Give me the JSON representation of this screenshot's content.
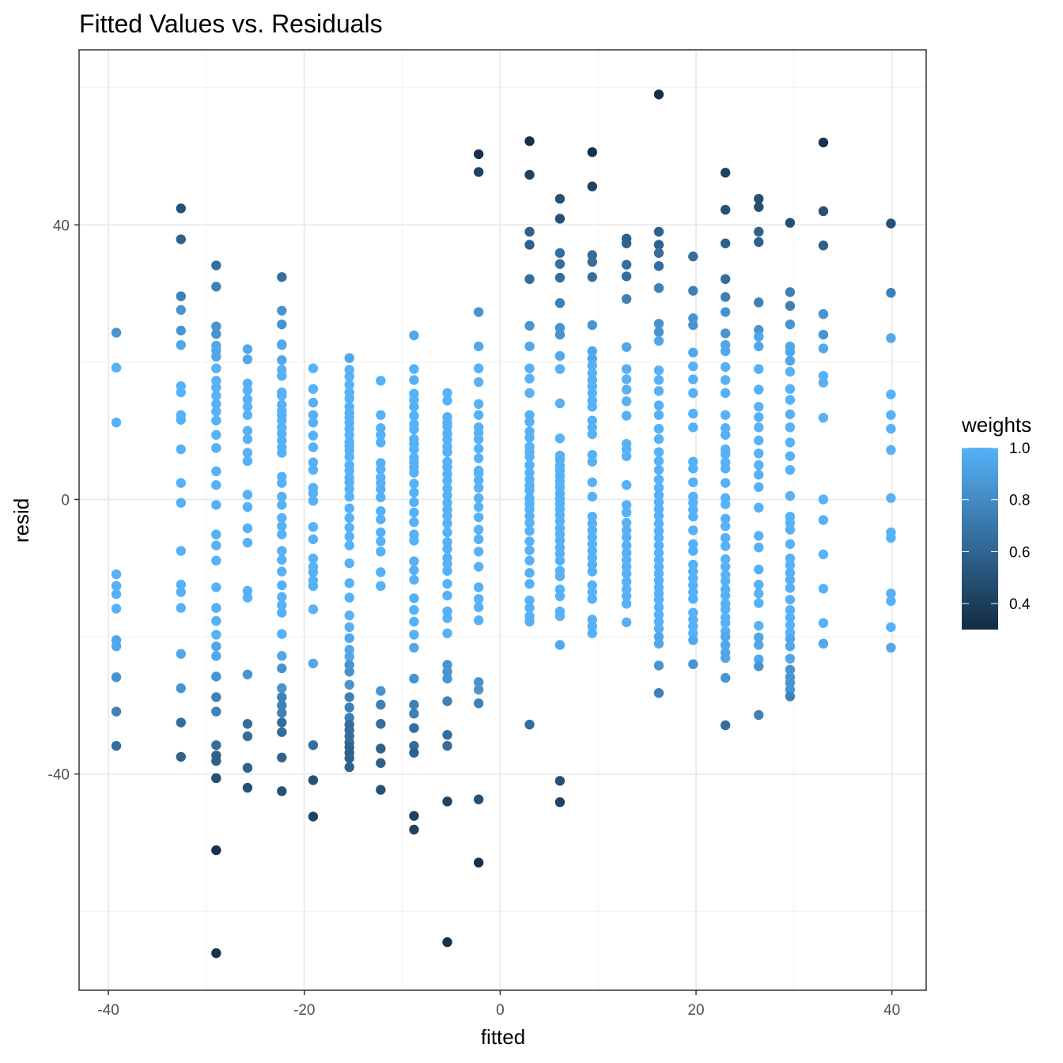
{
  "chart_data": {
    "type": "scatter",
    "title": "Fitted Values vs. Residuals",
    "xlabel": "fitted",
    "ylabel": "resid",
    "xlim": [
      -43,
      43.5
    ],
    "ylim": [
      -71.5,
      65.5
    ],
    "x_ticks": [
      -40,
      -20,
      0,
      20,
      40
    ],
    "x_tick_labels": [
      "-40",
      "-20",
      "0",
      "20",
      "40"
    ],
    "y_ticks": [
      -40,
      0,
      40
    ],
    "y_tick_labels": [
      "-40",
      "0",
      "40"
    ],
    "grid": true,
    "legend": {
      "title": "weights",
      "position": "right",
      "type": "colorbar",
      "range": [
        0.3,
        1.0
      ],
      "ticks": [
        0.4,
        0.6,
        0.8,
        1.0
      ],
      "tick_labels": [
        "0.4",
        "0.6",
        "0.8",
        "1.0"
      ],
      "low_color": "#132B43",
      "high_color": "#56B1F7"
    },
    "columns": [
      {
        "x": -39.2,
        "resid": [
          24.3,
          19.2,
          11.2,
          -10.9,
          -12.6,
          -13.8,
          -15.9,
          -20.5,
          -21.4,
          -25.9,
          -30.9,
          -35.9
        ]
      },
      {
        "x": -32.6,
        "resid": [
          42.4,
          37.9,
          29.6,
          27.6,
          24.6,
          22.5,
          16.5,
          15.6,
          12.3,
          11.6,
          7.3,
          2.4,
          -0.5,
          -7.5,
          -12.4,
          -13.5,
          -15.8,
          -22.5,
          -27.5,
          -32.5,
          -37.5
        ]
      },
      {
        "x": -29.0,
        "resid": [
          34.1,
          31.0,
          25.2,
          24.1,
          22.4,
          21.7,
          20.8,
          19.1,
          17.3,
          16.3,
          15.1,
          13.9,
          12.8,
          11.5,
          9.4,
          7.5,
          4.1,
          2.1,
          -0.8,
          -5.1,
          -6.7,
          -8.9,
          -12.8,
          -15.8,
          -17.7,
          -19.7,
          -21.4,
          -22.8,
          -25.8,
          -28.8,
          -30.9,
          -35.8,
          -37.3,
          -38.1,
          -40.6,
          -40.6,
          -51.1,
          -66.1
        ]
      },
      {
        "x": -25.8,
        "resid": [
          21.9,
          20.4,
          16.9,
          15.9,
          14.6,
          13.5,
          12.3,
          10.0,
          8.8,
          6.8,
          5.6,
          0.7,
          -1.1,
          -4.2,
          -6.3,
          -13.3,
          -14.3,
          -25.5,
          -32.7,
          -34.5,
          -39.1,
          -42.0
        ]
      },
      {
        "x": -22.3,
        "resid": [
          32.4,
          27.5,
          25.5,
          22.6,
          22.5,
          20.3,
          18.9,
          18.0,
          15.6,
          15.1,
          13.8,
          12.9,
          12.3,
          11.5,
          10.5,
          9.6,
          8.6,
          7.6,
          6.8,
          3.3,
          2.4,
          0.4,
          -0.8,
          -2.7,
          -3.9,
          -5.1,
          -7.5,
          -8.8,
          -10.5,
          -12.5,
          -14.2,
          -15.4,
          -16.5,
          -19.6,
          -22.8,
          -24.6,
          -27.5,
          -28.8,
          -30.0,
          -31.1,
          -32.5,
          -33.9,
          -37.6,
          -42.5
        ]
      },
      {
        "x": -19.1,
        "resid": [
          19.1,
          16.1,
          14.1,
          12.3,
          11.2,
          9.3,
          7.6,
          5.4,
          4.3,
          1.7,
          0.9,
          -0.2,
          -4.0,
          -5.8,
          -8.6,
          -9.8,
          -10.6,
          -11.8,
          -12.6,
          -16.0,
          -23.9,
          -35.8,
          -40.9,
          -46.2
        ]
      },
      {
        "x": -15.4,
        "resid": [
          20.6,
          18.9,
          17.9,
          16.7,
          15.6,
          14.7,
          13.5,
          12.6,
          11.9,
          11.2,
          10.3,
          9.4,
          8.4,
          7.8,
          7.1,
          6.2,
          5.0,
          4.2,
          3.2,
          2.5,
          1.5,
          0.4,
          -1.3,
          -2.7,
          -4.1,
          -5.4,
          -6.7,
          -9.3,
          -12.2,
          -14.3,
          -16.9,
          -18.6,
          -20.2,
          -21.9,
          -22.9,
          -24.1,
          -25.1,
          -27.0,
          -28.8,
          -30.3,
          -31.8,
          -32.8,
          -33.6,
          -34.5,
          -35.4,
          -36.1,
          -36.9,
          -37.7,
          -39.0
        ]
      },
      {
        "x": -12.2,
        "resid": [
          17.3,
          12.3,
          10.4,
          9.4,
          8.3,
          5.3,
          4.4,
          3.2,
          2.4,
          1.5,
          0.3,
          -1.7,
          -2.9,
          -4.8,
          -6.1,
          -7.6,
          -10.6,
          -12.6,
          -27.9,
          -29.9,
          -32.7,
          -36.3,
          -38.4,
          -42.3
        ]
      },
      {
        "x": -8.8,
        "resid": [
          23.9,
          19.0,
          17.4,
          15.4,
          14.5,
          13.5,
          12.2,
          11.0,
          10.2,
          8.8,
          8.1,
          7.3,
          6.1,
          5.4,
          4.7,
          3.9,
          2.3,
          1.0,
          -0.4,
          -1.9,
          -3.3,
          -5.1,
          -6.0,
          -9.0,
          -10.3,
          -11.7,
          -14.4,
          -16.1,
          -17.8,
          -19.7,
          -21.6,
          -26.1,
          -29.9,
          -31.2,
          -33.3,
          -35.9,
          -36.9,
          -46.1,
          -48.1
        ]
      },
      {
        "x": -5.4,
        "resid": [
          15.5,
          14.4,
          12.0,
          11.2,
          10.6,
          9.6,
          8.7,
          7.7,
          6.9,
          5.5,
          4.7,
          3.7,
          2.7,
          1.6,
          0.6,
          -0.5,
          -1.5,
          -2.4,
          -3.5,
          -4.8,
          -6.2,
          -7.2,
          -8.5,
          -9.4,
          -10.4,
          -12.3,
          -14.0,
          -16.3,
          -17.3,
          -19.5,
          -24.1,
          -25.1,
          -26.1,
          -29.4,
          -34.3,
          -35.9,
          -44.0,
          -64.5
        ]
      },
      {
        "x": -2.2,
        "resid": [
          50.3,
          47.7,
          27.3,
          22.3,
          19.1,
          17.1,
          13.9,
          12.3,
          10.5,
          9.7,
          8.8,
          7.4,
          6.0,
          4.2,
          3.8,
          2.8,
          1.7,
          0.2,
          -1.1,
          -2.6,
          -4.4,
          -5.8,
          -7.6,
          -9.8,
          -12.8,
          -14.5,
          -15.7,
          -17.6,
          -26.6,
          -27.7,
          -29.7,
          -43.7,
          -52.9
        ]
      },
      {
        "x": 3.0,
        "resid": [
          52.2,
          47.3,
          39.0,
          37.1,
          32.1,
          25.3,
          22.3,
          19.1,
          17.6,
          15.5,
          12.3,
          11.3,
          9.9,
          9.0,
          7.7,
          6.9,
          6.2,
          5.0,
          3.9,
          2.9,
          2.0,
          1.3,
          0.2,
          -0.6,
          -1.4,
          -2.4,
          -3.4,
          -4.6,
          -6.1,
          -7.4,
          -8.9,
          -10.7,
          -12.3,
          -14.7,
          -15.8,
          -17.0,
          -17.8,
          -32.8
        ]
      },
      {
        "x": 6.1,
        "resid": [
          43.8,
          40.9,
          35.9,
          34.3,
          32.3,
          28.6,
          25.0,
          24.0,
          20.9,
          19.0,
          14.0,
          8.9,
          6.4,
          5.8,
          4.9,
          4.2,
          3.4,
          2.6,
          1.8,
          0.9,
          0.1,
          -0.6,
          -1.4,
          -2.3,
          -3.2,
          -4.2,
          -5.1,
          -6.0,
          -7.0,
          -7.9,
          -8.9,
          -10.4,
          -11.2,
          -13.1,
          -14.1,
          -16.3,
          -17.0,
          -21.2,
          -41.0,
          -44.1
        ]
      },
      {
        "x": 9.4,
        "resid": [
          50.6,
          45.6,
          35.6,
          34.6,
          32.4,
          25.4,
          21.6,
          20.5,
          19.5,
          18.4,
          17.4,
          16.5,
          15.5,
          14.4,
          13.5,
          11.5,
          10.5,
          9.5,
          6.5,
          5.5,
          2.5,
          0.4,
          -2.5,
          -3.5,
          -4.5,
          -5.5,
          -6.5,
          -7.5,
          -8.5,
          -9.5,
          -10.5,
          -12.5,
          -13.5,
          -14.5,
          -17.5,
          -18.5,
          -19.5
        ]
      },
      {
        "x": 12.9,
        "resid": [
          38.0,
          37.3,
          34.2,
          32.5,
          29.2,
          22.2,
          19.0,
          17.5,
          16.0,
          14.3,
          12.2,
          8.1,
          7.3,
          6.3,
          2.1,
          -0.8,
          -1.9,
          -3.4,
          -4.5,
          -5.5,
          -6.7,
          -7.8,
          -8.8,
          -9.8,
          -10.8,
          -12.0,
          -13.1,
          -14.1,
          -15.2,
          -17.9
        ]
      },
      {
        "x": 16.2,
        "resid": [
          59.0,
          39.0,
          37.1,
          35.9,
          34.0,
          30.8,
          25.6,
          24.4,
          23.1,
          18.8,
          17.4,
          15.8,
          13.7,
          12.3,
          10.3,
          8.8,
          6.9,
          5.6,
          4.3,
          2.9,
          1.7,
          0.6,
          -0.4,
          -1.4,
          -2.4,
          -3.5,
          -4.6,
          -5.6,
          -6.7,
          -7.8,
          -8.8,
          -9.8,
          -10.8,
          -11.8,
          -12.8,
          -13.7,
          -14.6,
          -15.7,
          -16.8,
          -17.8,
          -18.8,
          -20.0,
          -21.0,
          -24.2,
          -28.2
        ]
      },
      {
        "x": 19.7,
        "resid": [
          35.4,
          30.4,
          26.4,
          25.4,
          21.4,
          19.4,
          17.5,
          15.5,
          12.5,
          10.5,
          5.5,
          4.5,
          2.5,
          0.4,
          -0.5,
          -1.5,
          -2.5,
          -4.5,
          -6.5,
          -7.5,
          -9.5,
          -10.5,
          -11.5,
          -12.5,
          -13.5,
          -14.5,
          -16.5,
          -17.5,
          -18.5,
          -19.5,
          -20.5,
          -24.0
        ]
      },
      {
        "x": 23.0,
        "resid": [
          47.6,
          42.2,
          37.3,
          32.1,
          29.5,
          27.3,
          24.2,
          22.5,
          21.6,
          19.3,
          17.4,
          15.5,
          12.3,
          10.4,
          9.4,
          7.3,
          6.6,
          5.4,
          4.5,
          2.4,
          0.2,
          -0.7,
          -2.8,
          -3.9,
          -5.6,
          -6.8,
          -8.7,
          -9.8,
          -11.0,
          -11.9,
          -13.1,
          -14.0,
          -15.2,
          -16.0,
          -17.2,
          -18.0,
          -19.2,
          -20.0,
          -21.2,
          -22.3,
          -23.1,
          -26.0,
          -32.9
        ]
      },
      {
        "x": 26.4,
        "resid": [
          43.8,
          42.6,
          39.0,
          37.5,
          28.7,
          24.7,
          23.7,
          22.3,
          19.0,
          16.0,
          13.5,
          12.0,
          10.5,
          8.6,
          6.7,
          5.0,
          3.6,
          1.8,
          -1.2,
          -5.3,
          -7.0,
          -10.2,
          -12.4,
          -13.7,
          -15.1,
          -18.4,
          -20.1,
          -21.2,
          -23.3,
          -24.3,
          -31.4
        ]
      },
      {
        "x": 29.6,
        "resid": [
          40.3,
          30.2,
          28.2,
          25.5,
          22.3,
          21.5,
          20.2,
          18.6,
          16.1,
          14.5,
          12.4,
          10.5,
          8.3,
          6.3,
          4.3,
          0.5,
          -2.5,
          -3.4,
          -4.4,
          -6.5,
          -8.6,
          -9.6,
          -10.7,
          -11.7,
          -12.9,
          -14.6,
          -16.1,
          -17.2,
          -18.3,
          -19.4,
          -20.3,
          -21.4,
          -23.2,
          -24.8,
          -25.9,
          -26.7,
          -27.7,
          -28.7
        ]
      },
      {
        "x": 33.0,
        "resid": [
          52.0,
          42.0,
          37.0,
          27.0,
          27.0,
          24.0,
          22.0,
          18.0,
          17.0,
          11.9,
          0.0,
          -3.0,
          -8.0,
          -13.0,
          -18.0,
          -21.0
        ]
      },
      {
        "x": 39.9,
        "resid": [
          40.2,
          30.1,
          23.5,
          15.3,
          12.3,
          10.3,
          7.2,
          0.2,
          -4.8,
          -5.6,
          -13.7,
          -14.8,
          -18.6,
          -21.6
        ]
      }
    ],
    "weights_by_abs_resid": [
      [
        0,
        20,
        1.0
      ],
      [
        20,
        24,
        0.95
      ],
      [
        24,
        28,
        0.85
      ],
      [
        28,
        32,
        0.75
      ],
      [
        32,
        36,
        0.65
      ],
      [
        36,
        40,
        0.58
      ],
      [
        40,
        44,
        0.5
      ],
      [
        44,
        50,
        0.42
      ],
      [
        50,
        100,
        0.33
      ]
    ]
  }
}
